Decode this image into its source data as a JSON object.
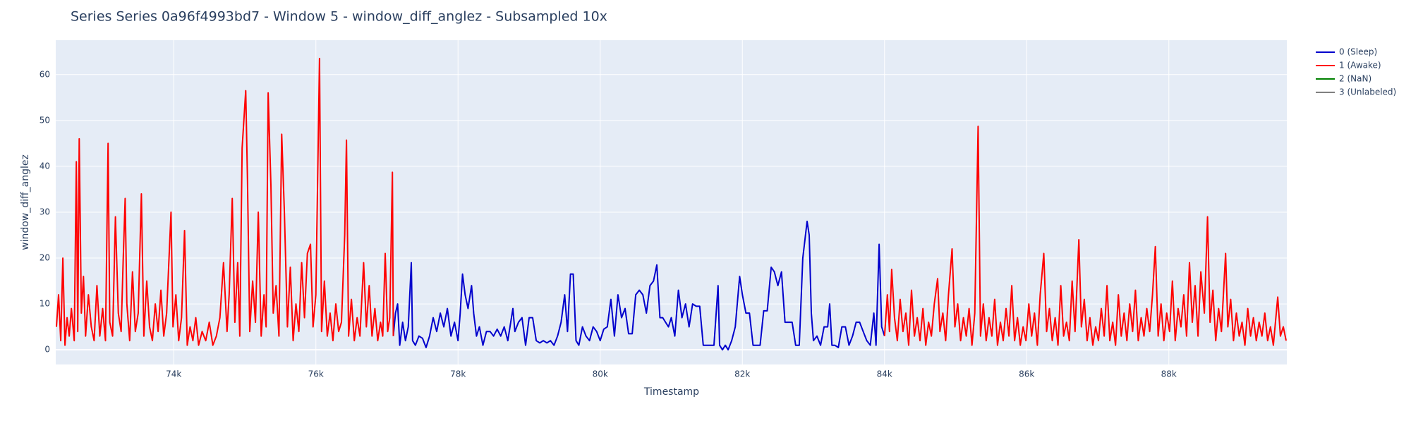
{
  "chart_data": {
    "type": "line",
    "title": "Series Series 0a96f4993bd7 - Window 5 - window_diff_anglez - Subsampled 10x",
    "x_label": "Timestamp",
    "y_label": "window_diff_anglez",
    "xlim": [
      72340,
      89660
    ],
    "ylim": [
      -3.2,
      67.5
    ],
    "xticks": [
      {
        "value": 74000,
        "label": "74k"
      },
      {
        "value": 76000,
        "label": "76k"
      },
      {
        "value": 78000,
        "label": "78k"
      },
      {
        "value": 80000,
        "label": "80k"
      },
      {
        "value": 82000,
        "label": "82k"
      },
      {
        "value": 84000,
        "label": "84k"
      },
      {
        "value": 86000,
        "label": "86k"
      },
      {
        "value": 88000,
        "label": "88k"
      }
    ],
    "yticks": [
      0,
      10,
      20,
      30,
      40,
      50,
      60
    ],
    "grid": true,
    "legend": "right",
    "series": [
      {
        "name": "0 (Sleep)",
        "color": "#0000cc",
        "x": [
          77089,
          77120,
          77150,
          77180,
          77220,
          77260,
          77300,
          77342,
          77360,
          77400,
          77450,
          77500,
          77550,
          77600,
          77650,
          77700,
          77750,
          77800,
          77850,
          77900,
          77950,
          78000,
          78030,
          78063,
          78100,
          78140,
          78190,
          78220,
          78260,
          78300,
          78350,
          78400,
          78450,
          78500,
          78550,
          78600,
          78650,
          78700,
          78772,
          78800,
          78850,
          78900,
          78950,
          79000,
          79050,
          79100,
          79150,
          79200,
          79250,
          79300,
          79350,
          79400,
          79450,
          79500,
          79540,
          79582,
          79620,
          79660,
          79700,
          79750,
          79800,
          79850,
          79900,
          79950,
          80000,
          80050,
          80100,
          80150,
          80200,
          80250,
          80300,
          80350,
          80400,
          80450,
          80500,
          80550,
          80600,
          80650,
          80700,
          80750,
          80797,
          80840,
          80880,
          80920,
          80960,
          81000,
          81050,
          81100,
          81150,
          81200,
          81250,
          81300,
          81350,
          81400,
          81450,
          81500,
          81550,
          81600,
          81658,
          81680,
          81720,
          81760,
          81800,
          81850,
          81900,
          81962,
          82000,
          82050,
          82100,
          82150,
          82200,
          82250,
          82300,
          82350,
          82405,
          82450,
          82500,
          82550,
          82600,
          82650,
          82700,
          82750,
          82800,
          82850,
          82911,
          82940,
          82970,
          83000,
          83050,
          83100,
          83150,
          83200,
          83228,
          83260,
          83300,
          83350,
          83400,
          83450,
          83500,
          83550,
          83600,
          83650,
          83700,
          83750,
          83800,
          83850,
          83880,
          83924,
          83960,
          84000
        ],
        "values": [
          3,
          8,
          10,
          1,
          6,
          2,
          5,
          19,
          2,
          1,
          3,
          2.5,
          0.5,
          3,
          7,
          4,
          8,
          5,
          9,
          3,
          6,
          2,
          8,
          16.5,
          12,
          9,
          14,
          8,
          3,
          5,
          1,
          4,
          4,
          3,
          4.5,
          3,
          5,
          2,
          9,
          4,
          6,
          7,
          1,
          7,
          7,
          2,
          1.5,
          2,
          1.5,
          2,
          1,
          3,
          6,
          12,
          4,
          16.5,
          16.5,
          2,
          1,
          5,
          3,
          2,
          5,
          4,
          2,
          4.5,
          5,
          11,
          3,
          12,
          7,
          9,
          3.5,
          3.5,
          12,
          13,
          12,
          8,
          14,
          15,
          18.5,
          7,
          7,
          6,
          5,
          7,
          3,
          13,
          7,
          10,
          5,
          10,
          9.5,
          9.5,
          1,
          1,
          1,
          1,
          14,
          1,
          0,
          1,
          0,
          2,
          5,
          16,
          12,
          8,
          8,
          1,
          1,
          1,
          8.5,
          8.5,
          18,
          17,
          14,
          17,
          6,
          6,
          6,
          1,
          1,
          20,
          28,
          25,
          8,
          2,
          3,
          1,
          5,
          5,
          10,
          1,
          1,
          0.5,
          5,
          5,
          1,
          3,
          6,
          6,
          4,
          2,
          1,
          8,
          1,
          23,
          5,
          3
        ]
      },
      {
        "name": "1 (Awake)",
        "color": "#ff0000",
        "x": [
          72350,
          72380,
          72410,
          72440,
          72470,
          72500,
          72530,
          72560,
          72600,
          72630,
          72650,
          72671,
          72700,
          72730,
          72760,
          72800,
          72840,
          72880,
          72920,
          72960,
          73000,
          73040,
          73076,
          73100,
          73140,
          73180,
          73220,
          73260,
          73290,
          73317,
          73340,
          73380,
          73420,
          73460,
          73500,
          73545,
          73580,
          73620,
          73660,
          73700,
          73740,
          73780,
          73820,
          73860,
          73900,
          73962,
          73990,
          74030,
          74070,
          74110,
          74152,
          74190,
          74230,
          74270,
          74310,
          74350,
          74400,
          74450,
          74500,
          74550,
          74600,
          74650,
          74700,
          74750,
          74780,
          74823,
          74860,
          74900,
          74930,
          74962,
          75013,
          75038,
          75070,
          75110,
          75150,
          75190,
          75230,
          75270,
          75300,
          75329,
          75367,
          75400,
          75440,
          75480,
          75519,
          75557,
          75600,
          75640,
          75680,
          75720,
          75760,
          75800,
          75840,
          75880,
          75924,
          75960,
          76000,
          76051,
          76080,
          76120,
          76160,
          76200,
          76240,
          76280,
          76320,
          76360,
          76405,
          76430,
          76460,
          76500,
          76540,
          76580,
          76620,
          76671,
          76710,
          76750,
          76790,
          76830,
          76870,
          76910,
          76940,
          76975,
          77010,
          77040,
          77076,
          77089,
          null,
          84000,
          84040,
          84070,
          84101,
          84140,
          84180,
          84220,
          84260,
          84300,
          84340,
          84380,
          84420,
          84460,
          84500,
          84540,
          84580,
          84620,
          84660,
          84700,
          84747,
          84780,
          84820,
          84860,
          84900,
          84950,
          84990,
          85030,
          85070,
          85110,
          85150,
          85190,
          85230,
          85270,
          85317,
          85350,
          85390,
          85430,
          85470,
          85510,
          85550,
          85590,
          85630,
          85670,
          85710,
          85750,
          85790,
          85830,
          85870,
          85910,
          85950,
          85990,
          86030,
          86070,
          86110,
          86150,
          86190,
          86241,
          86280,
          86320,
          86360,
          86400,
          86440,
          86480,
          86520,
          86560,
          86600,
          86640,
          86680,
          86734,
          86770,
          86810,
          86850,
          86890,
          86930,
          86970,
          87010,
          87050,
          87090,
          87130,
          87170,
          87210,
          87250,
          87290,
          87330,
          87370,
          87410,
          87450,
          87490,
          87530,
          87570,
          87610,
          87650,
          87690,
          87730,
          87770,
          87810,
          87850,
          87890,
          87930,
          87970,
          88010,
          88050,
          88090,
          88130,
          88170,
          88210,
          88250,
          88290,
          88330,
          88370,
          88410,
          88450,
          88500,
          88544,
          88580,
          88620,
          88660,
          88700,
          88740,
          88798,
          88830,
          88870,
          88910,
          88950,
          88990,
          89030,
          89070,
          89110,
          89150,
          89190,
          89230,
          89270,
          89310,
          89350,
          89390,
          89430,
          89470,
          89532,
          89570,
          89610,
          89650
        ],
        "values": [
          5,
          12,
          2,
          20,
          1,
          7,
          3,
          9,
          2,
          41,
          4,
          46,
          8,
          16,
          3,
          12,
          5,
          2,
          14,
          3,
          9,
          2,
          45,
          6,
          3,
          29,
          8,
          4,
          20,
          33,
          10,
          2,
          17,
          4,
          8,
          34,
          3,
          15,
          5,
          2,
          10,
          4,
          13,
          3,
          8,
          30,
          5,
          12,
          2,
          7,
          26,
          1,
          5,
          2,
          7,
          1,
          4,
          2,
          6,
          1,
          3,
          7,
          19,
          4,
          12,
          33,
          6,
          19,
          3,
          44,
          56.5,
          37,
          4,
          15,
          6,
          30,
          3,
          12,
          5,
          56,
          36,
          8,
          14,
          3,
          47,
          30,
          5,
          18,
          2,
          10,
          4,
          19,
          7,
          21,
          23,
          5,
          12,
          63.5,
          4,
          15,
          3,
          8,
          2,
          10,
          4,
          6,
          25,
          45.7,
          3,
          11,
          2,
          7,
          3,
          19,
          5,
          14,
          3,
          9,
          2,
          6,
          3,
          21,
          4,
          7,
          38.7,
          3,
          null,
          3,
          12,
          4,
          17.5,
          7,
          2,
          11,
          4,
          8,
          1,
          13,
          3,
          7,
          2,
          9,
          1,
          6,
          3,
          10,
          15.5,
          4,
          8,
          2,
          12,
          22,
          5,
          10,
          2,
          7,
          3,
          9,
          1,
          8,
          48.7,
          3,
          10,
          2,
          7,
          3,
          11,
          1,
          6,
          2,
          9,
          3,
          14,
          2,
          7,
          1,
          5,
          2,
          10,
          3,
          8,
          1,
          12,
          21,
          4,
          9,
          2,
          7,
          1,
          14,
          3,
          6,
          2,
          15,
          4,
          24,
          5,
          11,
          2,
          7,
          1,
          5,
          2,
          9,
          3,
          14,
          2,
          6,
          1,
          12,
          3,
          8,
          2,
          10,
          4,
          13,
          2,
          7,
          3,
          9,
          4,
          12,
          22.5,
          3,
          10,
          2,
          8,
          4,
          15,
          2,
          9,
          5,
          12,
          3,
          19,
          6,
          14,
          3,
          17,
          8,
          29,
          6,
          13,
          2,
          9,
          4,
          21,
          5,
          11,
          2,
          8,
          3,
          6,
          1,
          9,
          3,
          7,
          2,
          6,
          3,
          8,
          2,
          5,
          1,
          11.5,
          3,
          5,
          2
        ]
      },
      {
        "name": "2 (NaN)",
        "color": "#008000",
        "x": [],
        "values": []
      },
      {
        "name": "3 (Unlabeled)",
        "color": "#808080",
        "x": [],
        "values": []
      }
    ]
  }
}
